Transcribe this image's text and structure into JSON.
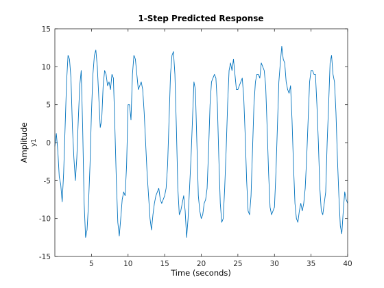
{
  "chart_data": {
    "type": "line",
    "title": "1-Step Predicted Response",
    "xlabel": "Time (seconds)",
    "ylabel": "Amplitude",
    "channel_label": "y1",
    "xlim": [
      0,
      40
    ],
    "ylim": [
      -15,
      15
    ],
    "xticks": [
      5,
      10,
      15,
      20,
      25,
      30,
      35,
      40
    ],
    "yticks": [
      -15,
      -10,
      -5,
      0,
      5,
      10,
      15
    ],
    "grid": false,
    "legend": "none",
    "colors": {
      "line": "#0072BD",
      "axis": "#262626",
      "background": "#ffffff"
    },
    "series": [
      {
        "x": [
          0.0,
          0.2,
          0.4,
          0.6,
          0.8,
          1.0,
          1.2,
          1.4,
          1.6,
          1.8,
          2.0,
          2.2,
          2.4,
          2.6,
          2.8,
          3.0,
          3.2,
          3.4,
          3.6,
          3.8,
          4.0,
          4.2,
          4.4,
          4.6,
          4.8,
          5.0,
          5.2,
          5.4,
          5.6,
          5.8,
          6.0,
          6.2,
          6.4,
          6.6,
          6.8,
          7.0,
          7.2,
          7.4,
          7.6,
          7.8,
          8.0,
          8.2,
          8.4,
          8.6,
          8.8,
          9.0,
          9.2,
          9.4,
          9.6,
          9.8,
          10.0,
          10.2,
          10.4,
          10.6,
          10.8,
          11.0,
          11.2,
          11.4,
          11.6,
          11.8,
          12.0,
          12.2,
          12.4,
          12.6,
          12.8,
          13.0,
          13.2,
          13.4,
          13.6,
          13.8,
          14.0,
          14.2,
          14.4,
          14.6,
          14.8,
          15.0,
          15.2,
          15.4,
          15.6,
          15.8,
          16.0,
          16.2,
          16.4,
          16.6,
          16.8,
          17.0,
          17.2,
          17.4,
          17.6,
          17.8,
          18.0,
          18.2,
          18.4,
          18.6,
          18.8,
          19.0,
          19.2,
          19.4,
          19.6,
          19.8,
          20.0,
          20.2,
          20.4,
          20.6,
          20.8,
          21.0,
          21.2,
          21.4,
          21.6,
          21.8,
          22.0,
          22.2,
          22.4,
          22.6,
          22.8,
          23.0,
          23.2,
          23.4,
          23.6,
          23.8,
          24.0,
          24.2,
          24.4,
          24.6,
          24.8,
          25.0,
          25.2,
          25.4,
          25.6,
          25.8,
          26.0,
          26.2,
          26.4,
          26.6,
          26.8,
          27.0,
          27.2,
          27.4,
          27.6,
          27.8,
          28.0,
          28.2,
          28.4,
          28.6,
          28.8,
          29.0,
          29.2,
          29.4,
          29.6,
          29.8,
          30.0,
          30.2,
          30.4,
          30.6,
          30.8,
          31.0,
          31.2,
          31.4,
          31.6,
          31.8,
          32.0,
          32.2,
          32.4,
          32.6,
          32.8,
          33.0,
          33.2,
          33.4,
          33.6,
          33.8,
          34.0,
          34.2,
          34.4,
          34.6,
          34.8,
          35.0,
          35.2,
          35.4,
          35.6,
          35.8,
          36.0,
          36.2,
          36.4,
          36.6,
          36.8,
          37.0,
          37.2,
          37.4,
          37.6,
          37.8,
          38.0,
          38.2,
          38.4,
          38.6,
          38.8,
          39.0,
          39.2,
          39.4,
          39.6,
          39.8,
          40.0
        ],
        "values": [
          -0.5,
          1.2,
          -1.0,
          -4.5,
          -5.5,
          -7.8,
          -4.0,
          2.0,
          8.0,
          11.5,
          11.0,
          8.5,
          2.0,
          -2.0,
          -5.0,
          -2.0,
          3.0,
          7.5,
          9.5,
          2.0,
          -8.0,
          -12.5,
          -11.5,
          -8.0,
          -3.0,
          4.0,
          9.0,
          11.5,
          12.2,
          10.0,
          6.0,
          2.0,
          3.0,
          7.5,
          9.5,
          9.0,
          7.5,
          8.0,
          7.0,
          9.0,
          8.5,
          2.0,
          -5.0,
          -10.5,
          -12.3,
          -10.0,
          -7.5,
          -6.5,
          -7.0,
          -3.0,
          5.0,
          5.0,
          3.0,
          9.0,
          11.5,
          11.0,
          9.0,
          7.0,
          7.5,
          8.0,
          7.0,
          4.0,
          0.0,
          -4.0,
          -7.0,
          -10.0,
          -11.5,
          -9.5,
          -8.0,
          -7.0,
          -6.5,
          -6.0,
          -7.5,
          -8.0,
          -7.5,
          -7.0,
          -6.0,
          -3.0,
          3.0,
          9.0,
          11.5,
          12.0,
          9.0,
          2.0,
          -6.0,
          -9.5,
          -9.0,
          -8.0,
          -7.0,
          -9.0,
          -12.5,
          -10.0,
          -6.0,
          -2.0,
          3.0,
          8.0,
          7.0,
          0.0,
          -7.0,
          -9.0,
          -10.0,
          -9.5,
          -8.0,
          -7.5,
          -6.0,
          -1.0,
          5.0,
          8.0,
          8.5,
          9.0,
          8.5,
          5.0,
          -2.0,
          -8.0,
          -10.5,
          -10.0,
          -6.0,
          -1.0,
          5.0,
          9.5,
          10.5,
          9.5,
          11.0,
          9.0,
          7.0,
          7.0,
          7.5,
          8.0,
          8.5,
          6.0,
          1.0,
          -5.0,
          -9.0,
          -9.5,
          -7.0,
          -1.0,
          5.0,
          8.0,
          9.0,
          9.0,
          8.5,
          10.5,
          10.0,
          9.5,
          7.5,
          2.0,
          -4.0,
          -8.5,
          -9.5,
          -9.0,
          -8.5,
          -4.0,
          2.0,
          8.0,
          10.5,
          12.7,
          11.0,
          10.5,
          8.0,
          7.0,
          6.5,
          7.5,
          3.0,
          -3.0,
          -8.0,
          -10.0,
          -10.5,
          -9.0,
          -8.0,
          -9.0,
          -8.0,
          -6.0,
          -2.0,
          3.0,
          8.0,
          9.5,
          9.5,
          9.0,
          9.0,
          5.0,
          0.0,
          -6.0,
          -9.0,
          -9.5,
          -8.0,
          -6.5,
          0.0,
          5.0,
          10.5,
          11.5,
          9.0,
          8.0,
          4.0,
          -2.0,
          -7.0,
          -11.0,
          -12.0,
          -9.0,
          -6.5,
          -7.5,
          -8.0
        ]
      }
    ]
  }
}
